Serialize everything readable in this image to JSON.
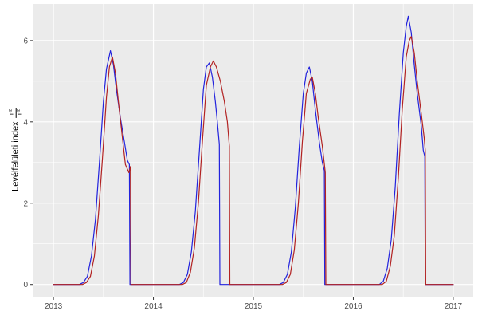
{
  "figure": {
    "y_axis_label": "Levélfelületi index",
    "y_axis_frac_numerator": "m²",
    "y_axis_frac_denominator": "m²"
  },
  "chart_data": {
    "type": "line",
    "title": "",
    "subtitle": "",
    "xlabel": "",
    "ylabel": "Levélfelületi index (m²/m²)",
    "grid": true,
    "legend": "none",
    "panel_background": "#EBEBEB",
    "grid_color": "#FFFFFF",
    "axis_text_color": "#4D4D4D",
    "tick_mark_color": "#333333",
    "xlim": [
      2012.8,
      2017.2
    ],
    "ylim": [
      -0.3,
      6.9
    ],
    "x_ticks": [
      2013,
      2014,
      2015,
      2016,
      2017
    ],
    "x_minor_ticks": [
      2013.5,
      2014.5,
      2015.5,
      2016.5
    ],
    "y_ticks": [
      0,
      2,
      4,
      6
    ],
    "y_minor_ticks": [
      1,
      3,
      5
    ],
    "series": [
      {
        "name": "blue",
        "color": "#2222DD",
        "points": [
          [
            2013.0,
            0
          ],
          [
            2013.26,
            0
          ],
          [
            2013.3,
            0.05
          ],
          [
            2013.34,
            0.2
          ],
          [
            2013.38,
            0.7
          ],
          [
            2013.42,
            1.6
          ],
          [
            2013.46,
            3.0
          ],
          [
            2013.5,
            4.5
          ],
          [
            2013.53,
            5.3
          ],
          [
            2013.57,
            5.75
          ],
          [
            2013.6,
            5.4
          ],
          [
            2013.63,
            4.8
          ],
          [
            2013.67,
            4.1
          ],
          [
            2013.71,
            3.5
          ],
          [
            2013.74,
            3.05
          ],
          [
            2013.76,
            2.95
          ],
          [
            2013.765,
            0
          ],
          [
            2014.26,
            0
          ],
          [
            2014.3,
            0.05
          ],
          [
            2014.34,
            0.25
          ],
          [
            2014.38,
            0.8
          ],
          [
            2014.42,
            1.8
          ],
          [
            2014.46,
            3.3
          ],
          [
            2014.5,
            4.8
          ],
          [
            2014.53,
            5.35
          ],
          [
            2014.56,
            5.45
          ],
          [
            2014.59,
            5.1
          ],
          [
            2014.62,
            4.5
          ],
          [
            2014.64,
            4.0
          ],
          [
            2014.66,
            3.45
          ],
          [
            2014.665,
            0
          ],
          [
            2015.26,
            0
          ],
          [
            2015.3,
            0.05
          ],
          [
            2015.34,
            0.25
          ],
          [
            2015.38,
            0.8
          ],
          [
            2015.42,
            1.9
          ],
          [
            2015.46,
            3.4
          ],
          [
            2015.5,
            4.7
          ],
          [
            2015.53,
            5.2
          ],
          [
            2015.56,
            5.35
          ],
          [
            2015.59,
            5.0
          ],
          [
            2015.62,
            4.3
          ],
          [
            2015.66,
            3.5
          ],
          [
            2015.69,
            3.0
          ],
          [
            2015.71,
            2.8
          ],
          [
            2015.715,
            0
          ],
          [
            2016.26,
            0
          ],
          [
            2016.3,
            0.08
          ],
          [
            2016.34,
            0.4
          ],
          [
            2016.38,
            1.1
          ],
          [
            2016.42,
            2.4
          ],
          [
            2016.46,
            4.2
          ],
          [
            2016.5,
            5.7
          ],
          [
            2016.53,
            6.35
          ],
          [
            2016.55,
            6.6
          ],
          [
            2016.58,
            6.2
          ],
          [
            2016.61,
            5.4
          ],
          [
            2016.64,
            4.7
          ],
          [
            2016.68,
            3.9
          ],
          [
            2016.7,
            3.3
          ],
          [
            2016.715,
            3.15
          ],
          [
            2016.72,
            0
          ],
          [
            2017.0,
            0
          ]
        ]
      },
      {
        "name": "red",
        "color": "#B22222",
        "points": [
          [
            2013.0,
            0
          ],
          [
            2013.29,
            0
          ],
          [
            2013.33,
            0.05
          ],
          [
            2013.37,
            0.2
          ],
          [
            2013.41,
            0.7
          ],
          [
            2013.45,
            1.7
          ],
          [
            2013.49,
            3.1
          ],
          [
            2013.53,
            4.6
          ],
          [
            2013.56,
            5.35
          ],
          [
            2013.59,
            5.6
          ],
          [
            2013.62,
            5.2
          ],
          [
            2013.65,
            4.5
          ],
          [
            2013.69,
            3.6
          ],
          [
            2013.72,
            2.95
          ],
          [
            2013.755,
            2.75
          ],
          [
            2013.77,
            2.9
          ],
          [
            2013.775,
            0
          ],
          [
            2014.29,
            0
          ],
          [
            2014.33,
            0.05
          ],
          [
            2014.37,
            0.3
          ],
          [
            2014.41,
            0.9
          ],
          [
            2014.45,
            2.0
          ],
          [
            2014.49,
            3.5
          ],
          [
            2014.53,
            4.9
          ],
          [
            2014.57,
            5.35
          ],
          [
            2014.6,
            5.5
          ],
          [
            2014.63,
            5.35
          ],
          [
            2014.67,
            5.0
          ],
          [
            2014.71,
            4.5
          ],
          [
            2014.74,
            4.0
          ],
          [
            2014.76,
            3.4
          ],
          [
            2014.765,
            0
          ],
          [
            2015.29,
            0
          ],
          [
            2015.33,
            0.05
          ],
          [
            2015.37,
            0.25
          ],
          [
            2015.41,
            0.85
          ],
          [
            2015.45,
            2.0
          ],
          [
            2015.49,
            3.5
          ],
          [
            2015.53,
            4.7
          ],
          [
            2015.57,
            5.05
          ],
          [
            2015.59,
            5.1
          ],
          [
            2015.62,
            4.7
          ],
          [
            2015.65,
            4.1
          ],
          [
            2015.69,
            3.4
          ],
          [
            2015.72,
            2.75
          ],
          [
            2015.725,
            0
          ],
          [
            2016.29,
            0
          ],
          [
            2016.33,
            0.08
          ],
          [
            2016.37,
            0.45
          ],
          [
            2016.41,
            1.2
          ],
          [
            2016.45,
            2.6
          ],
          [
            2016.49,
            4.3
          ],
          [
            2016.53,
            5.6
          ],
          [
            2016.56,
            6.0
          ],
          [
            2016.58,
            6.1
          ],
          [
            2016.61,
            5.7
          ],
          [
            2016.64,
            5.0
          ],
          [
            2016.68,
            4.2
          ],
          [
            2016.71,
            3.6
          ],
          [
            2016.72,
            3.3
          ],
          [
            2016.725,
            0
          ],
          [
            2017.0,
            0
          ]
        ]
      }
    ]
  }
}
